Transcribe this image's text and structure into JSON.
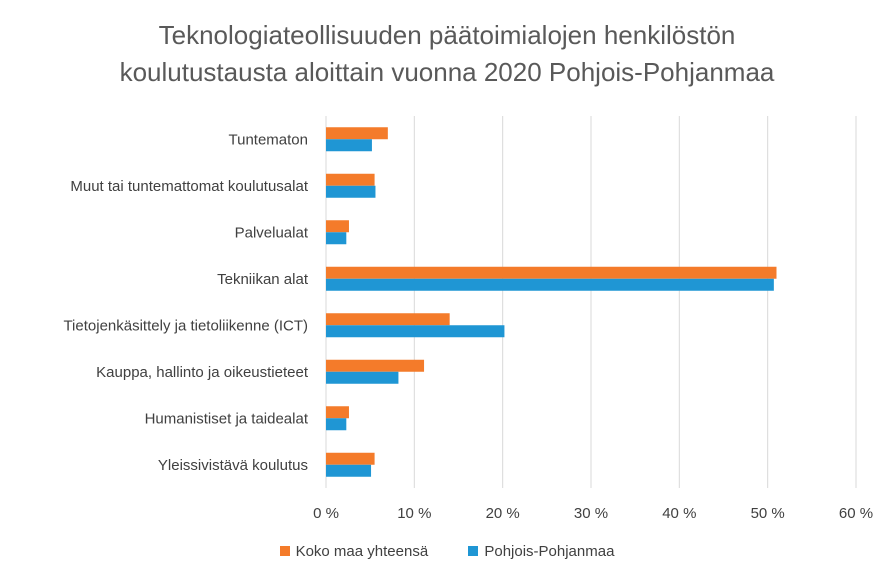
{
  "chart_data": {
    "type": "bar",
    "orientation": "horizontal",
    "title_lines": [
      "Teknologiateollisuuden päätoimialojen henkilöstön",
      "koulutustausta aloittain vuonna 2020 Pohjois-Pohjanmaa"
    ],
    "categories": [
      "Tuntematon",
      "Muut tai tuntemattomat koulutusalat",
      "Palvelualat",
      "Tekniikan alat",
      "Tietojenkäsittely ja tietoliikenne (ICT)",
      "Kauppa, hallinto ja oikeustieteet",
      "Humanistiset ja taidealat",
      "Yleissivistävä koulutus"
    ],
    "series": [
      {
        "name": "Koko maa yhteensä",
        "color": "#f47b2a",
        "values": [
          7.0,
          5.5,
          2.6,
          51.0,
          14.0,
          11.1,
          2.6,
          5.5
        ]
      },
      {
        "name": "Pohjois-Pohjanmaa",
        "color": "#1f96d4",
        "values": [
          5.2,
          5.6,
          2.3,
          50.7,
          20.2,
          8.2,
          2.3,
          5.1
        ]
      }
    ],
    "xlim": [
      0,
      60
    ],
    "xticks": [
      0,
      10,
      20,
      30,
      40,
      50,
      60
    ],
    "xtick_labels": [
      "0 %",
      "10 %",
      "20 %",
      "30 %",
      "40 %",
      "50 %",
      "60 %"
    ],
    "grid": true,
    "legend_position": "bottom"
  }
}
